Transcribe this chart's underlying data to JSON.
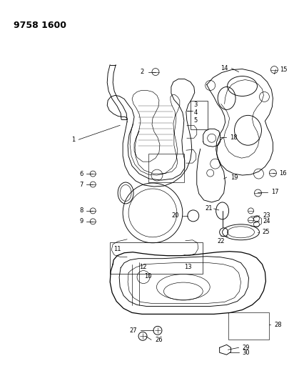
{
  "title": "9758 1600",
  "bg": "#ffffff",
  "lc": "#1a1a1a",
  "tc": "#1a1a1a",
  "title_fs": 9,
  "lbl_fs": 6.0
}
